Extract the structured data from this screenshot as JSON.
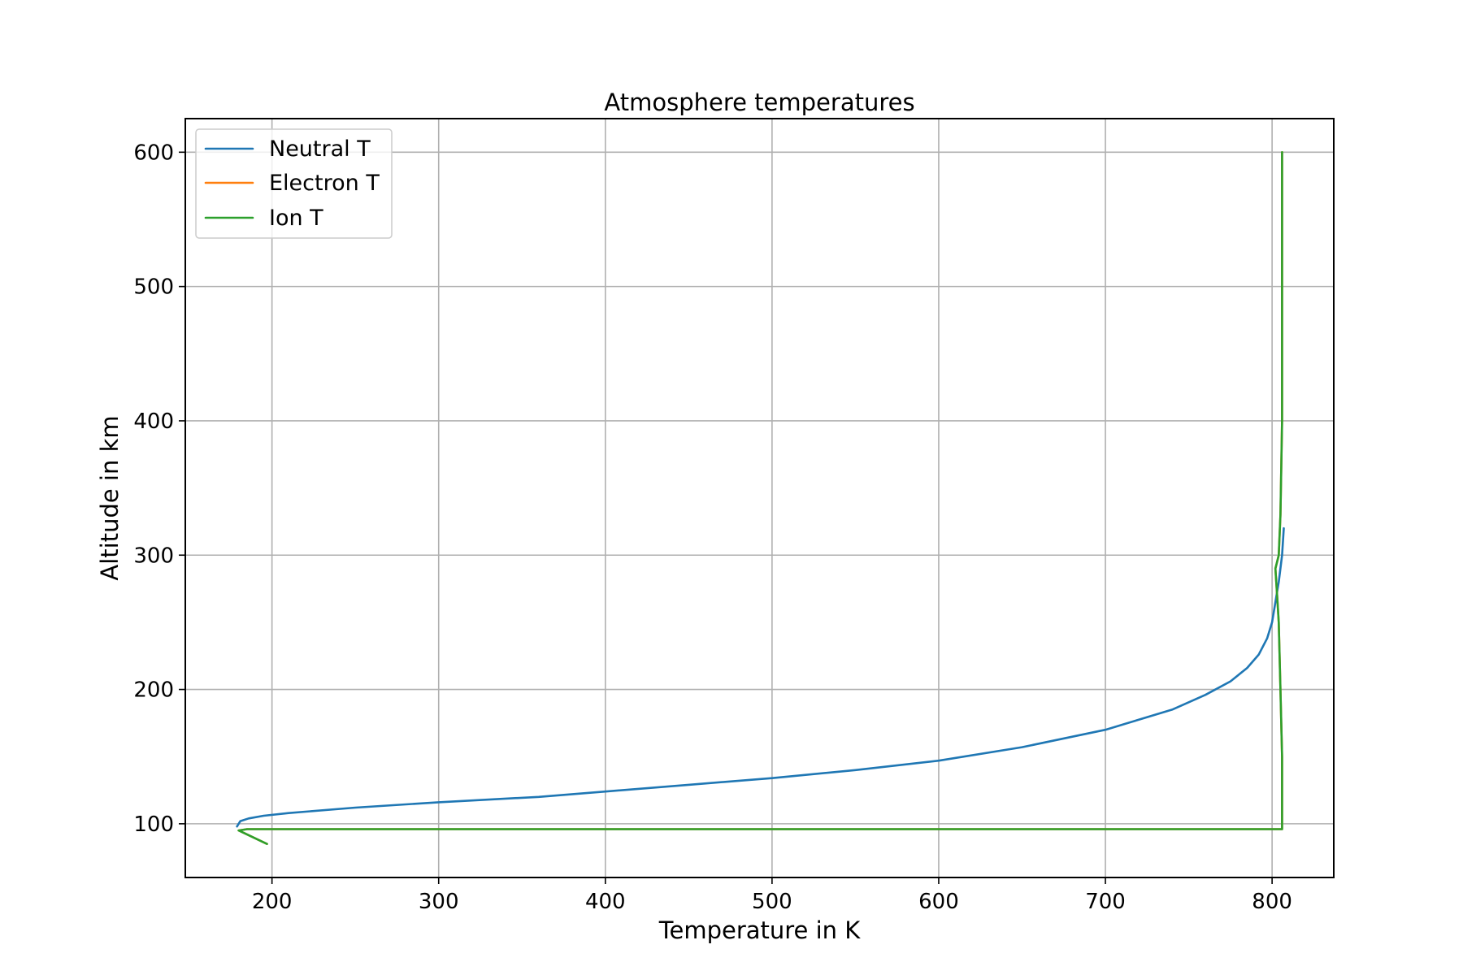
{
  "chart_data": {
    "type": "line",
    "title": "Atmosphere temperatures",
    "xlabel": "Temperature in K",
    "ylabel": "Altitude in km",
    "xlim": [
      148,
      837
    ],
    "ylim": [
      60,
      625
    ],
    "xticks": [
      200,
      300,
      400,
      500,
      600,
      700,
      800
    ],
    "yticks": [
      100,
      200,
      300,
      400,
      500,
      600
    ],
    "grid": true,
    "legend_position": "upper-left",
    "series": [
      {
        "name": "Neutral T",
        "color": "#1f77b4",
        "x": [
          179,
          181,
          186,
          195,
          210,
          250,
          300,
          360,
          400,
          450,
          500,
          550,
          600,
          650,
          700,
          740,
          760,
          775,
          785,
          792,
          797,
          800,
          802,
          804,
          806,
          807
        ],
        "y": [
          98,
          102,
          104,
          106,
          108,
          112,
          116,
          120,
          124,
          129,
          134,
          140,
          147,
          157,
          170,
          185,
          196,
          206,
          216,
          226,
          238,
          250,
          265,
          280,
          300,
          320
        ]
      },
      {
        "name": "Electron T",
        "color": "#ff7f0e",
        "x": [
          197,
          180,
          185,
          806,
          806,
          806,
          805,
          804,
          803,
          802,
          804,
          805,
          806,
          806
        ],
        "y": [
          85,
          95,
          96,
          96,
          100,
          150,
          200,
          250,
          270,
          290,
          300,
          330,
          400,
          600
        ]
      },
      {
        "name": "Ion T",
        "color": "#2ca02c",
        "x": [
          197,
          180,
          185,
          806,
          806,
          806,
          805,
          804,
          803,
          802,
          804,
          805,
          806,
          806
        ],
        "y": [
          85,
          95,
          96,
          96,
          100,
          150,
          200,
          250,
          270,
          290,
          300,
          330,
          400,
          600
        ]
      }
    ]
  }
}
